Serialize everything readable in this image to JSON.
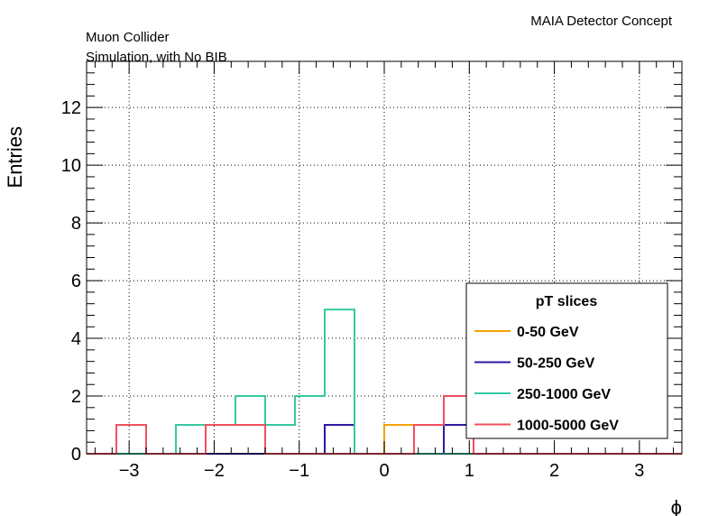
{
  "chart_data": {
    "type": "histogram",
    "experiment_label": "MAIA Detector Concept",
    "annotations": [
      "Muon Collider",
      "Simulation, with No BIB"
    ],
    "xlabel": "ϕ",
    "ylabel": "Entries",
    "xlim": [
      -3.5,
      3.5
    ],
    "ylim": [
      0,
      13.6
    ],
    "x_ticks": [
      -3,
      -2,
      -1,
      0,
      1,
      2,
      3
    ],
    "y_ticks": [
      0,
      2,
      4,
      6,
      8,
      10,
      12
    ],
    "grid": true,
    "bin_edges": [
      -3.5,
      -3.15,
      -2.8,
      -2.45,
      -2.1,
      -1.75,
      -1.4,
      -1.05,
      -0.7,
      -0.35,
      0.0,
      0.35,
      0.7,
      1.05,
      1.4,
      1.75,
      2.1,
      2.45,
      2.8,
      3.15,
      3.5
    ],
    "legend": {
      "title": "pT slices",
      "position": "bottom-right"
    },
    "series": [
      {
        "name": "0-50 GeV",
        "color": "#f5a300",
        "values": [
          0,
          0,
          0,
          0,
          0,
          0,
          0,
          0,
          0,
          0,
          1,
          1,
          0,
          0,
          0,
          0,
          0,
          0,
          0,
          0
        ]
      },
      {
        "name": "50-250 GeV",
        "color": "#2b1aa0",
        "values": [
          0,
          0,
          0,
          0,
          0,
          0,
          0,
          0,
          1,
          0,
          0,
          0,
          1,
          0,
          0,
          0,
          0,
          0,
          0,
          0
        ]
      },
      {
        "name": "250-1000 GeV",
        "color": "#34c9a0",
        "values": [
          0,
          0,
          0,
          1,
          1,
          2,
          1,
          2,
          5,
          0,
          0,
          0,
          0,
          0,
          0,
          0,
          0,
          0,
          0,
          0
        ]
      },
      {
        "name": "1000-5000 GeV",
        "color": "#f2505e",
        "values": [
          0,
          1,
          0,
          0,
          1,
          1,
          0,
          0,
          0,
          0,
          0,
          1,
          2,
          0,
          0,
          0,
          0,
          0,
          0,
          0
        ]
      }
    ]
  }
}
